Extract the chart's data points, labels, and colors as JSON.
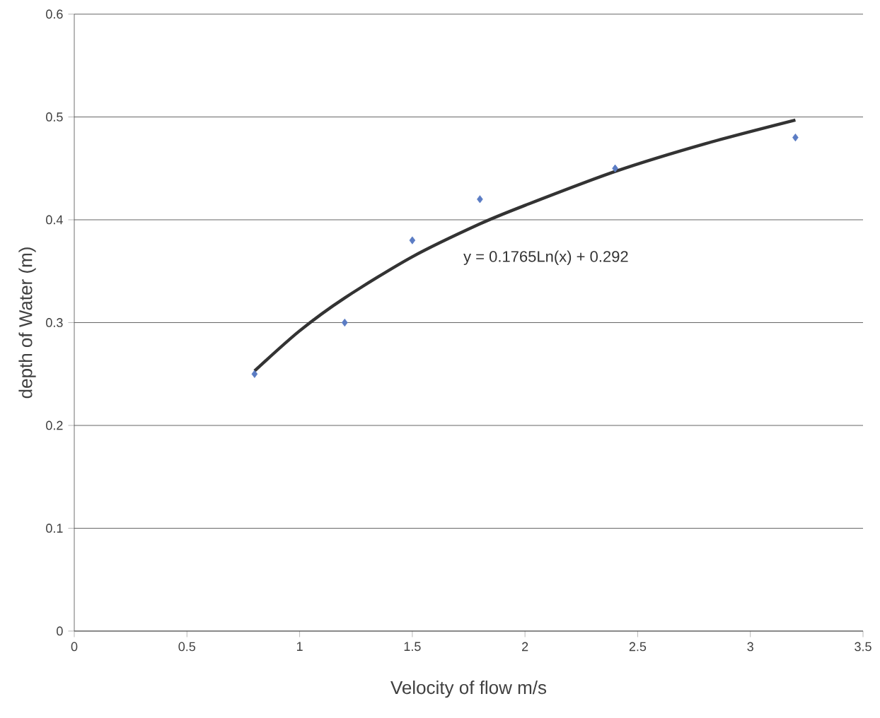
{
  "chart_data": {
    "type": "scatter",
    "xlabel": "Velocity of flow m/s",
    "ylabel": "depth of Water  (m)",
    "annotations": [
      "y = 0.1765Ln(x) + 0.292"
    ],
    "series": [
      {
        "marker": "diamond",
        "color": "#5b7cc4",
        "x": [
          0.8,
          1.2,
          1.5,
          1.8,
          2.4,
          3.2
        ],
        "values": [
          0.25,
          0.3,
          0.38,
          0.42,
          0.45,
          0.48
        ]
      },
      {
        "type": "line",
        "marker": "none",
        "line_style": "solid",
        "color": "#333333",
        "x": [
          0.8,
          1.0,
          1.2,
          1.5,
          1.8,
          2.0,
          2.4,
          2.8,
          3.2
        ],
        "values": [
          0.253,
          0.292,
          0.324,
          0.364,
          0.396,
          0.414,
          0.447,
          0.474,
          0.497
        ]
      }
    ],
    "xlim": [
      0,
      3.5
    ],
    "xticks": [
      0,
      0.5,
      1,
      1.5,
      2,
      2.5,
      3,
      3.5
    ],
    "ylim": [
      0,
      0.6
    ],
    "yticks": [
      0,
      0.1,
      0.2,
      0.3,
      0.4,
      0.5,
      0.6
    ],
    "grid": "y"
  }
}
